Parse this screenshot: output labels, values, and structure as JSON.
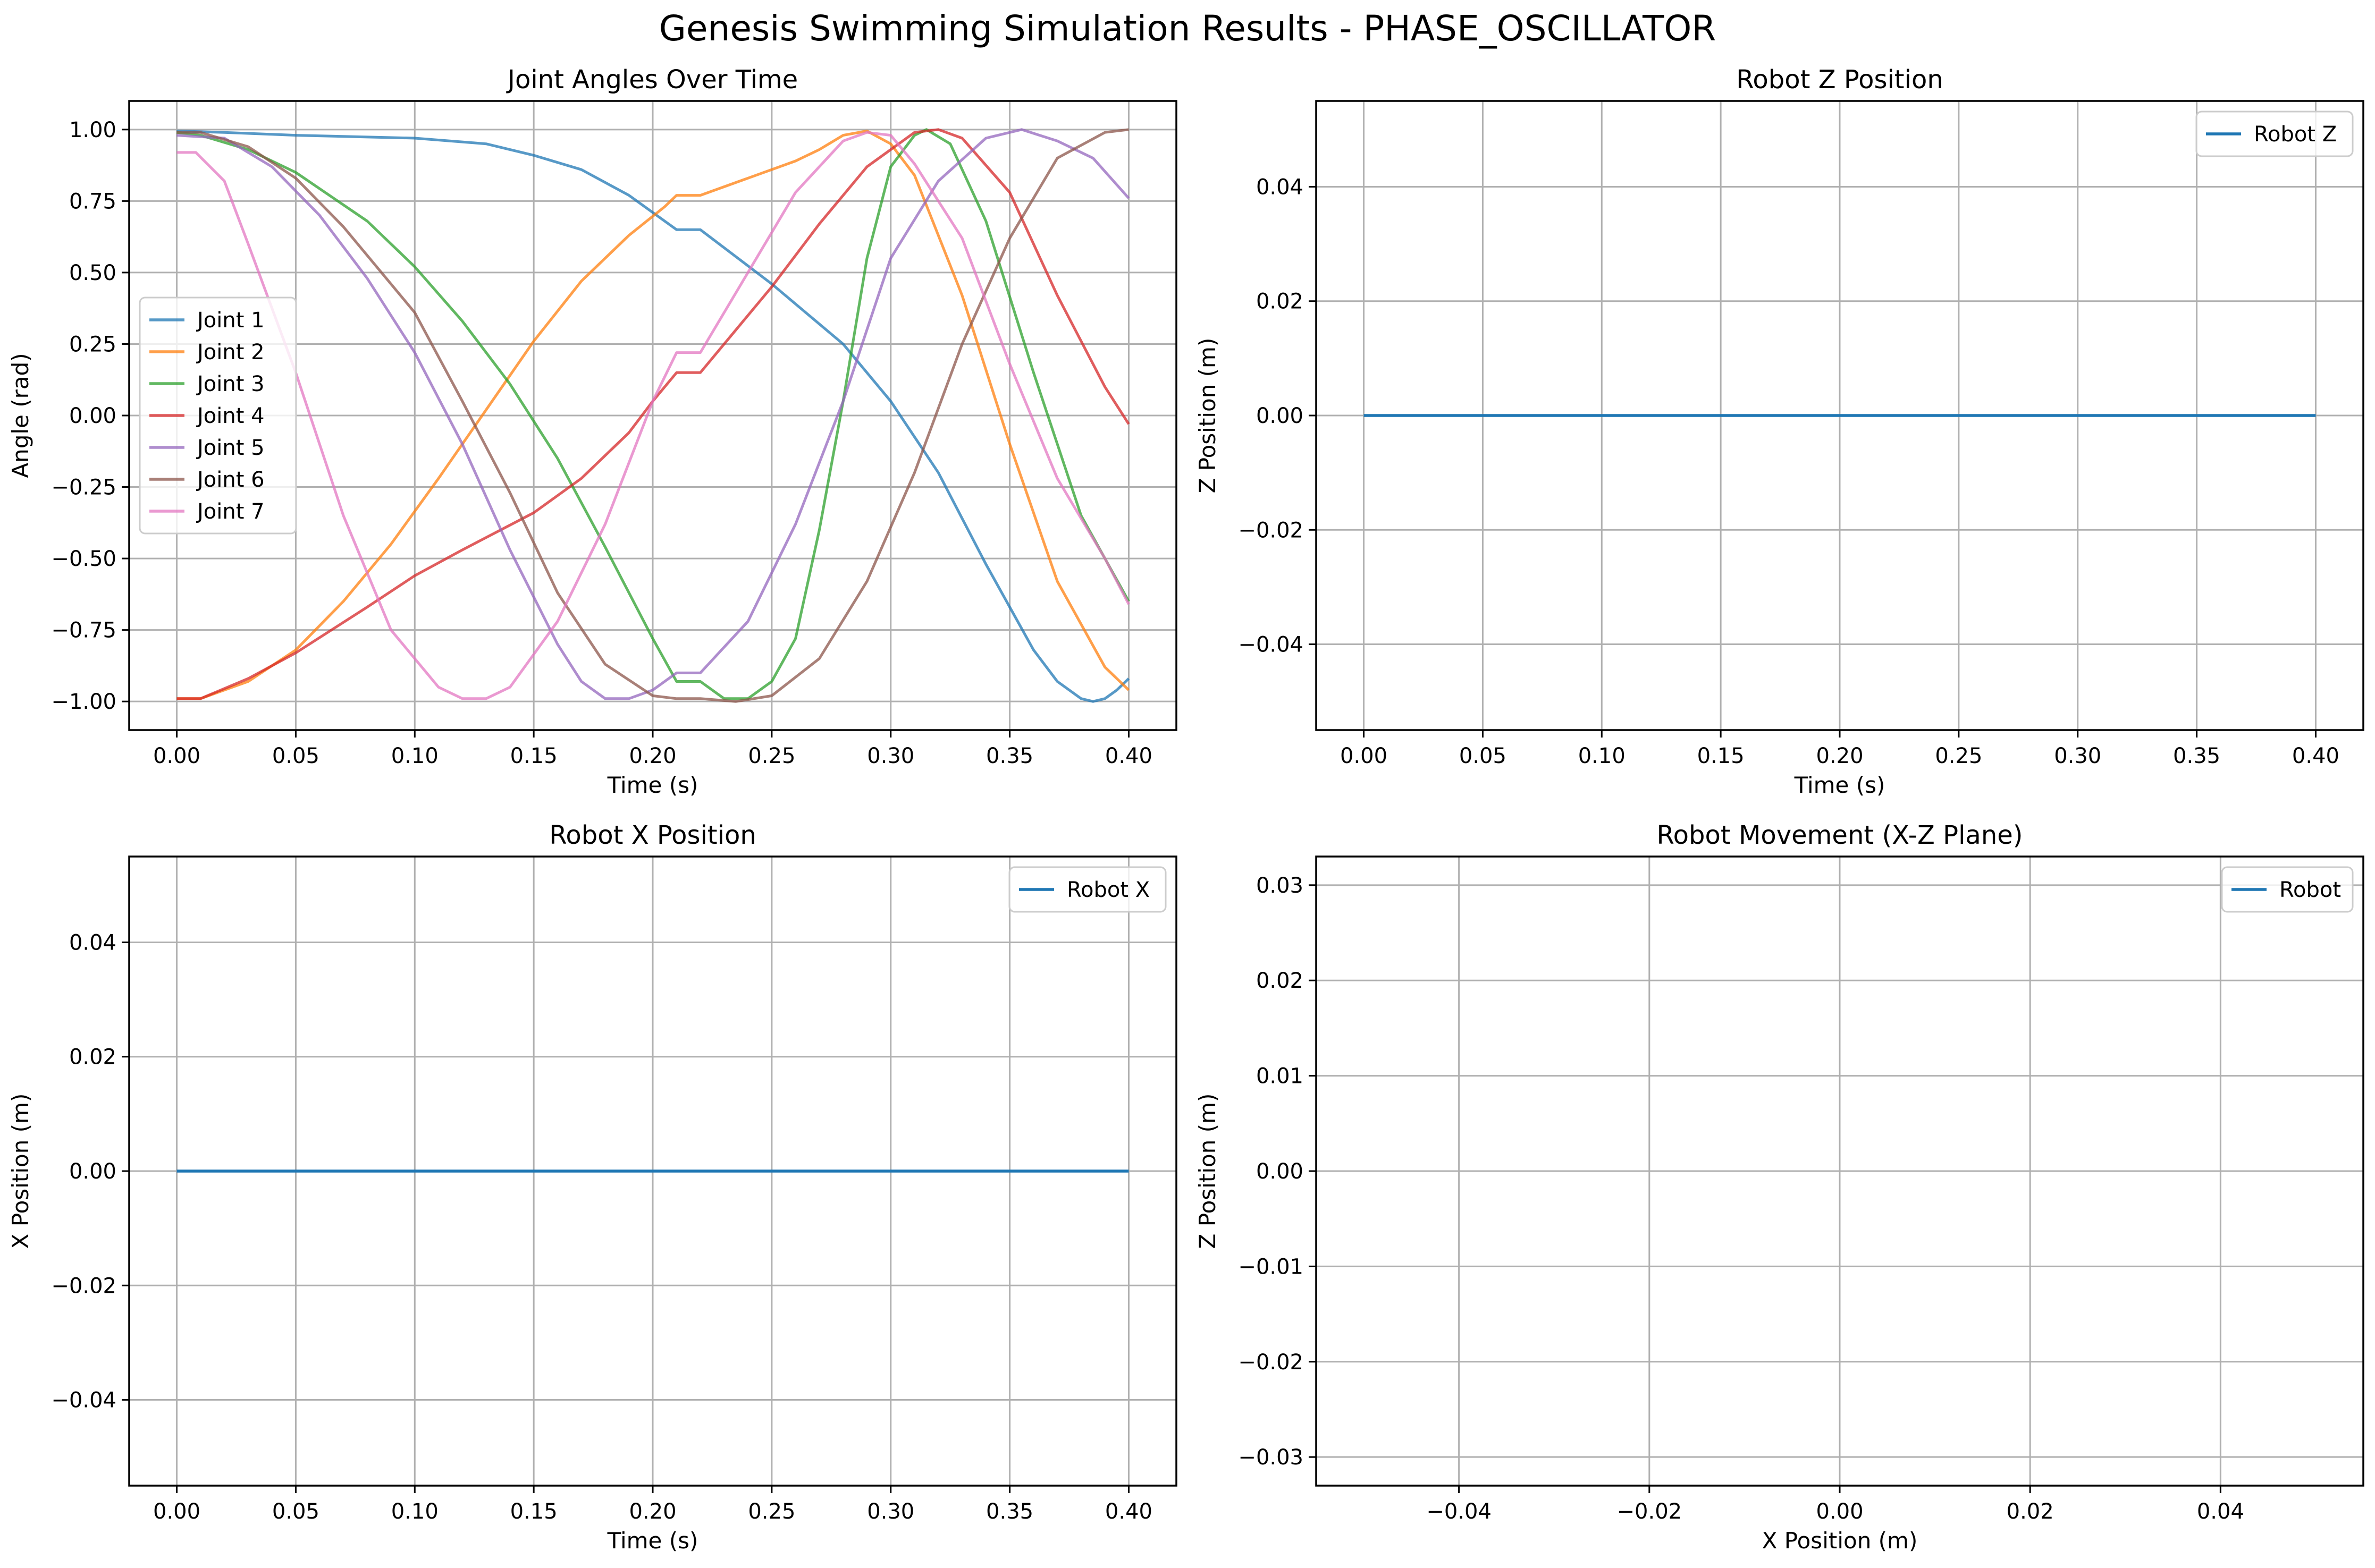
{
  "figure": {
    "title": "Genesis Swimming Simulation Results - PHASE_OSCILLATOR"
  },
  "chart_data": [
    {
      "id": "joint-angles",
      "type": "line",
      "title": "Joint Angles Over Time",
      "xlabel": "Time (s)",
      "ylabel": "Angle (rad)",
      "xlim": [
        -0.02,
        0.42
      ],
      "ylim": [
        -1.1,
        1.1
      ],
      "xticks": [
        0.0,
        0.05,
        0.1,
        0.15,
        0.2,
        0.25,
        0.3,
        0.35,
        0.4
      ],
      "xtick_labels": [
        "0.00",
        "0.05",
        "0.10",
        "0.15",
        "0.20",
        "0.25",
        "0.30",
        "0.35",
        "0.40"
      ],
      "yticks": [
        1.0,
        0.75,
        0.5,
        0.25,
        0.0,
        -0.25,
        -0.5,
        -0.75,
        -1.0
      ],
      "ytick_labels": [
        "1.00",
        "0.75",
        "0.50",
        "0.25",
        "0.00",
        "−0.25",
        "−0.50",
        "−0.75",
        "−1.00"
      ],
      "grid": true,
      "legend": "center-left",
      "series": [
        {
          "name": "Joint 1",
          "color": "#1f77b4",
          "points": [
            [
              0,
              0.995
            ],
            [
              0.02,
              0.99
            ],
            [
              0.05,
              0.98
            ],
            [
              0.1,
              0.97
            ],
            [
              0.13,
              0.95
            ],
            [
              0.15,
              0.91
            ],
            [
              0.17,
              0.86
            ],
            [
              0.19,
              0.77
            ],
            [
              0.21,
              0.65
            ],
            [
              0.215,
              0.65
            ],
            [
              0.22,
              0.65
            ],
            [
              0.25,
              0.46
            ],
            [
              0.28,
              0.25
            ],
            [
              0.3,
              0.05
            ],
            [
              0.32,
              -0.2
            ],
            [
              0.34,
              -0.52
            ],
            [
              0.36,
              -0.82
            ],
            [
              0.37,
              -0.93
            ],
            [
              0.38,
              -0.99
            ],
            [
              0.385,
              -1.0
            ],
            [
              0.39,
              -0.99
            ],
            [
              0.395,
              -0.96
            ],
            [
              0.4,
              -0.92
            ]
          ]
        },
        {
          "name": "Joint 2",
          "color": "#ff7f0e",
          "points": [
            [
              0,
              -0.99
            ],
            [
              0.01,
              -0.99
            ],
            [
              0.03,
              -0.93
            ],
            [
              0.05,
              -0.82
            ],
            [
              0.07,
              -0.65
            ],
            [
              0.09,
              -0.45
            ],
            [
              0.11,
              -0.22
            ],
            [
              0.13,
              0.02
            ],
            [
              0.15,
              0.26
            ],
            [
              0.17,
              0.47
            ],
            [
              0.19,
              0.63
            ],
            [
              0.205,
              0.73
            ],
            [
              0.21,
              0.77
            ],
            [
              0.22,
              0.77
            ],
            [
              0.24,
              0.83
            ],
            [
              0.26,
              0.89
            ],
            [
              0.27,
              0.93
            ],
            [
              0.28,
              0.98
            ],
            [
              0.29,
              0.995
            ],
            [
              0.3,
              0.95
            ],
            [
              0.31,
              0.84
            ],
            [
              0.33,
              0.42
            ],
            [
              0.35,
              -0.1
            ],
            [
              0.37,
              -0.58
            ],
            [
              0.39,
              -0.88
            ],
            [
              0.4,
              -0.96
            ]
          ]
        },
        {
          "name": "Joint 3",
          "color": "#2ca02c",
          "points": [
            [
              0,
              0.99
            ],
            [
              0.01,
              0.98
            ],
            [
              0.03,
              0.93
            ],
            [
              0.05,
              0.85
            ],
            [
              0.08,
              0.68
            ],
            [
              0.1,
              0.52
            ],
            [
              0.12,
              0.33
            ],
            [
              0.14,
              0.11
            ],
            [
              0.16,
              -0.15
            ],
            [
              0.18,
              -0.46
            ],
            [
              0.2,
              -0.78
            ],
            [
              0.21,
              -0.93
            ],
            [
              0.22,
              -0.93
            ],
            [
              0.23,
              -0.99
            ],
            [
              0.24,
              -0.99
            ],
            [
              0.25,
              -0.93
            ],
            [
              0.26,
              -0.78
            ],
            [
              0.27,
              -0.4
            ],
            [
              0.28,
              0.05
            ],
            [
              0.29,
              0.55
            ],
            [
              0.3,
              0.87
            ],
            [
              0.31,
              0.98
            ],
            [
              0.315,
              1.0
            ],
            [
              0.325,
              0.95
            ],
            [
              0.34,
              0.68
            ],
            [
              0.36,
              0.15
            ],
            [
              0.38,
              -0.35
            ],
            [
              0.4,
              -0.65
            ]
          ]
        },
        {
          "name": "Joint 4",
          "color": "#d62728",
          "points": [
            [
              0,
              -0.99
            ],
            [
              0.01,
              -0.99
            ],
            [
              0.03,
              -0.92
            ],
            [
              0.05,
              -0.83
            ],
            [
              0.08,
              -0.67
            ],
            [
              0.1,
              -0.56
            ],
            [
              0.12,
              -0.47
            ],
            [
              0.15,
              -0.34
            ],
            [
              0.17,
              -0.22
            ],
            [
              0.19,
              -0.06
            ],
            [
              0.2,
              0.05
            ],
            [
              0.21,
              0.15
            ],
            [
              0.215,
              0.15
            ],
            [
              0.22,
              0.15
            ],
            [
              0.25,
              0.45
            ],
            [
              0.27,
              0.67
            ],
            [
              0.29,
              0.87
            ],
            [
              0.31,
              0.99
            ],
            [
              0.32,
              1.0
            ],
            [
              0.33,
              0.97
            ],
            [
              0.35,
              0.78
            ],
            [
              0.37,
              0.42
            ],
            [
              0.39,
              0.1
            ],
            [
              0.4,
              -0.03
            ]
          ]
        },
        {
          "name": "Joint 5",
          "color": "#9467bd",
          "points": [
            [
              0,
              0.98
            ],
            [
              0.02,
              0.97
            ],
            [
              0.04,
              0.87
            ],
            [
              0.06,
              0.7
            ],
            [
              0.08,
              0.48
            ],
            [
              0.1,
              0.22
            ],
            [
              0.12,
              -0.1
            ],
            [
              0.14,
              -0.47
            ],
            [
              0.16,
              -0.8
            ],
            [
              0.17,
              -0.93
            ],
            [
              0.18,
              -0.99
            ],
            [
              0.19,
              -0.99
            ],
            [
              0.2,
              -0.96
            ],
            [
              0.21,
              -0.9
            ],
            [
              0.22,
              -0.9
            ],
            [
              0.24,
              -0.72
            ],
            [
              0.26,
              -0.38
            ],
            [
              0.28,
              0.05
            ],
            [
              0.3,
              0.55
            ],
            [
              0.32,
              0.82
            ],
            [
              0.34,
              0.97
            ],
            [
              0.355,
              1.0
            ],
            [
              0.37,
              0.96
            ],
            [
              0.385,
              0.9
            ],
            [
              0.4,
              0.76
            ]
          ]
        },
        {
          "name": "Joint 6",
          "color": "#8c564b",
          "points": [
            [
              0,
              0.99
            ],
            [
              0.01,
              0.99
            ],
            [
              0.03,
              0.94
            ],
            [
              0.05,
              0.83
            ],
            [
              0.07,
              0.66
            ],
            [
              0.1,
              0.36
            ],
            [
              0.12,
              0.05
            ],
            [
              0.14,
              -0.27
            ],
            [
              0.16,
              -0.62
            ],
            [
              0.18,
              -0.87
            ],
            [
              0.2,
              -0.98
            ],
            [
              0.21,
              -0.99
            ],
            [
              0.22,
              -0.99
            ],
            [
              0.235,
              -1.0
            ],
            [
              0.25,
              -0.98
            ],
            [
              0.27,
              -0.85
            ],
            [
              0.29,
              -0.58
            ],
            [
              0.31,
              -0.2
            ],
            [
              0.33,
              0.25
            ],
            [
              0.35,
              0.62
            ],
            [
              0.37,
              0.9
            ],
            [
              0.39,
              0.99
            ],
            [
              0.4,
              1.0
            ]
          ]
        },
        {
          "name": "Joint 7",
          "color": "#e377c2",
          "points": [
            [
              0,
              0.92
            ],
            [
              0.008,
              0.92
            ],
            [
              0.02,
              0.82
            ],
            [
              0.03,
              0.6
            ],
            [
              0.05,
              0.15
            ],
            [
              0.07,
              -0.35
            ],
            [
              0.09,
              -0.75
            ],
            [
              0.11,
              -0.95
            ],
            [
              0.12,
              -0.99
            ],
            [
              0.13,
              -0.99
            ],
            [
              0.14,
              -0.95
            ],
            [
              0.16,
              -0.72
            ],
            [
              0.18,
              -0.38
            ],
            [
              0.2,
              0.05
            ],
            [
              0.21,
              0.22
            ],
            [
              0.215,
              0.22
            ],
            [
              0.22,
              0.22
            ],
            [
              0.24,
              0.5
            ],
            [
              0.26,
              0.78
            ],
            [
              0.28,
              0.96
            ],
            [
              0.29,
              0.99
            ],
            [
              0.3,
              0.98
            ],
            [
              0.31,
              0.88
            ],
            [
              0.33,
              0.62
            ],
            [
              0.35,
              0.18
            ],
            [
              0.37,
              -0.22
            ],
            [
              0.39,
              -0.5
            ],
            [
              0.4,
              -0.66
            ]
          ]
        }
      ]
    },
    {
      "id": "robot-z",
      "type": "line",
      "title": "Robot Z Position",
      "xlabel": "Time (s)",
      "ylabel": "Z Position (m)",
      "xlim": [
        -0.02,
        0.42
      ],
      "ylim": [
        -0.055,
        0.055
      ],
      "xticks": [
        0.0,
        0.05,
        0.1,
        0.15,
        0.2,
        0.25,
        0.3,
        0.35,
        0.4
      ],
      "xtick_labels": [
        "0.00",
        "0.05",
        "0.10",
        "0.15",
        "0.20",
        "0.25",
        "0.30",
        "0.35",
        "0.40"
      ],
      "yticks": [
        0.04,
        0.02,
        0.0,
        -0.02,
        -0.04
      ],
      "ytick_labels": [
        "0.04",
        "0.02",
        "0.00",
        "−0.02",
        "−0.04"
      ],
      "grid": true,
      "legend": "upper-right",
      "series": [
        {
          "name": "Robot Z",
          "color": "#1f77b4",
          "points": [
            [
              0,
              0
            ],
            [
              0.4,
              0
            ]
          ]
        }
      ]
    },
    {
      "id": "robot-x",
      "type": "line",
      "title": "Robot X Position",
      "xlabel": "Time (s)",
      "ylabel": "X Position (m)",
      "xlim": [
        -0.02,
        0.42
      ],
      "ylim": [
        -0.055,
        0.055
      ],
      "xticks": [
        0.0,
        0.05,
        0.1,
        0.15,
        0.2,
        0.25,
        0.3,
        0.35,
        0.4
      ],
      "xtick_labels": [
        "0.00",
        "0.05",
        "0.10",
        "0.15",
        "0.20",
        "0.25",
        "0.30",
        "0.35",
        "0.40"
      ],
      "yticks": [
        0.04,
        0.02,
        0.0,
        -0.02,
        -0.04
      ],
      "ytick_labels": [
        "0.04",
        "0.02",
        "0.00",
        "−0.02",
        "−0.04"
      ],
      "grid": true,
      "legend": "upper-right",
      "series": [
        {
          "name": "Robot X",
          "color": "#1f77b4",
          "points": [
            [
              0,
              0
            ],
            [
              0.4,
              0
            ]
          ]
        }
      ]
    },
    {
      "id": "robot-movement",
      "type": "line",
      "title": "Robot Movement (X-Z Plane)",
      "xlabel": "X Position (m)",
      "ylabel": "Z Position (m)",
      "xlim": [
        -0.055,
        0.055
      ],
      "ylim": [
        -0.033,
        0.033
      ],
      "xticks": [
        -0.04,
        -0.02,
        0.0,
        0.02,
        0.04
      ],
      "xtick_labels": [
        "−0.04",
        "−0.02",
        "0.00",
        "0.02",
        "0.04"
      ],
      "yticks": [
        0.03,
        0.02,
        0.01,
        0.0,
        -0.01,
        -0.02,
        -0.03
      ],
      "ytick_labels": [
        "0.03",
        "0.02",
        "0.01",
        "0.00",
        "−0.01",
        "−0.02",
        "−0.03"
      ],
      "grid": true,
      "legend": "upper-right",
      "series": [
        {
          "name": "Robot",
          "color": "#1f77b4",
          "points": []
        }
      ]
    }
  ]
}
